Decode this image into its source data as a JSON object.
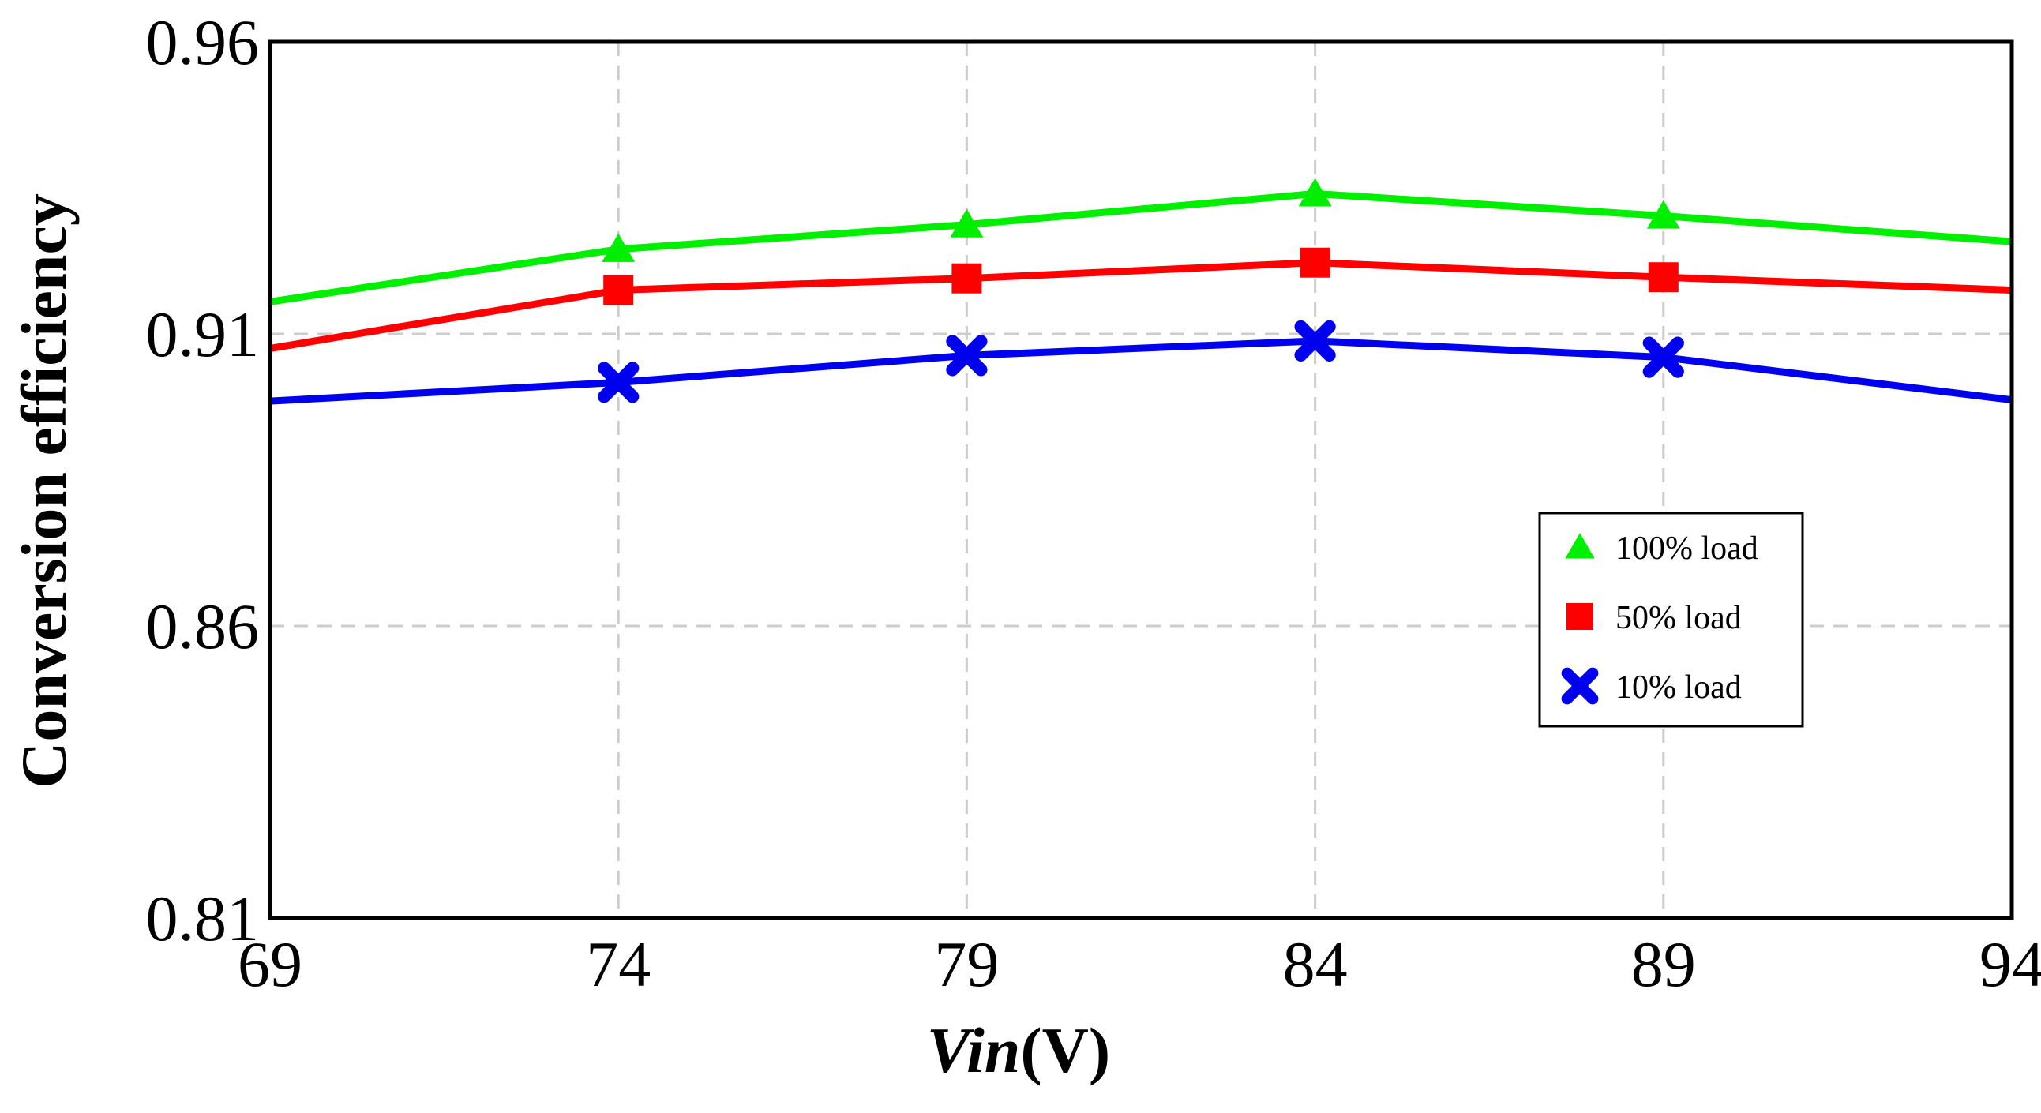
{
  "chart_data": {
    "type": "line",
    "title": "",
    "xlabel_italic": "Vin",
    "xlabel_unit": "(V)",
    "ylabel": "Conversion efficiency",
    "x": [
      69,
      74,
      79,
      84,
      89,
      94
    ],
    "x_ticks": [
      "69",
      "74",
      "79",
      "84",
      "89",
      "94"
    ],
    "y_ticks": [
      "0.81",
      "0.86",
      "0.91",
      "0.96"
    ],
    "xlim": [
      69,
      94
    ],
    "ylim": [
      0.81,
      0.96
    ],
    "grid": true,
    "legend_position": "right-middle",
    "series": [
      {
        "name": "100% load",
        "color": "#00ee00",
        "marker": "triangle",
        "values": [
          0.9155,
          0.9245,
          0.9287,
          0.934,
          0.9302,
          0.9258
        ],
        "marker_at": [
          74,
          79,
          84,
          89
        ]
      },
      {
        "name": "50% load",
        "color": "#ff0000",
        "marker": "square",
        "values": [
          0.9075,
          0.9175,
          0.9195,
          0.9222,
          0.9197,
          0.9175
        ],
        "marker_at": [
          74,
          79,
          84,
          89
        ]
      },
      {
        "name": "10% load",
        "color": "#0000ee",
        "marker": "x-cross",
        "values": [
          0.8985,
          0.9017,
          0.9063,
          0.9088,
          0.906,
          0.8987
        ],
        "marker_at": [
          74,
          79,
          84,
          89
        ]
      }
    ]
  }
}
